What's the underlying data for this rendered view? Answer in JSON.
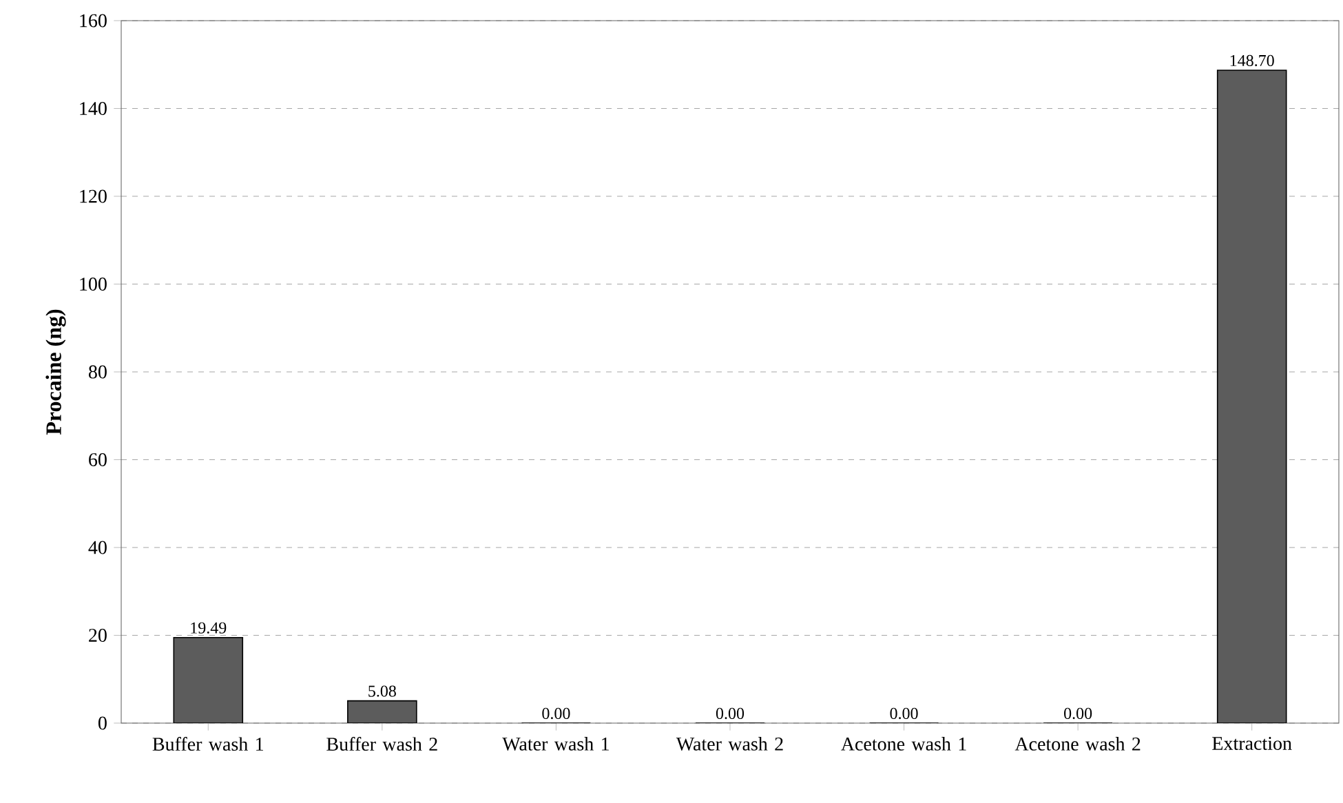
{
  "chart_data": {
    "type": "bar",
    "ylabel": "Procaine (ng)",
    "categories": [
      "Buffer wash 1",
      "Buffer wash 2",
      "Water wash 1",
      "Water wash 2",
      "Acetone wash 1",
      "Acetone wash 2",
      "Extraction"
    ],
    "values": [
      19.49,
      5.08,
      0.0,
      0.0,
      0.0,
      0.0,
      148.7
    ],
    "value_labels": [
      "19.49",
      "5.08",
      "0.00",
      "0.00",
      "0.00",
      "0.00",
      "148.70"
    ],
    "color": "#5c5c5c",
    "ylim": [
      0,
      160
    ],
    "yticks": [
      0,
      20,
      40,
      60,
      80,
      100,
      120,
      140,
      160
    ],
    "grid": "y"
  }
}
